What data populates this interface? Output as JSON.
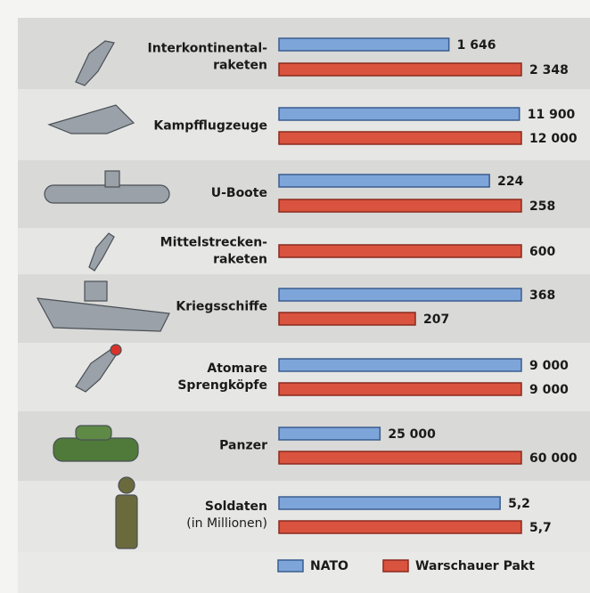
{
  "chart_data": {
    "type": "bar",
    "categories": [
      [
        "Interkontinental-",
        "raketen"
      ],
      [
        "Kampfflugzeuge"
      ],
      [
        "U-Boote"
      ],
      [
        "Mittelstrecken-",
        "raketen"
      ],
      [
        "Kriegsschiffe"
      ],
      [
        "Atomare",
        "Sprengköpfe"
      ],
      [
        "Panzer"
      ],
      [
        "Soldaten",
        "(in Millionen)"
      ]
    ],
    "series": [
      {
        "name": "NATO",
        "color": "#7ea5d9",
        "values": [
          1646,
          11900,
          224,
          null,
          368,
          9000,
          25000,
          5.2
        ],
        "value_labels": [
          "1 646",
          "11 900",
          "224",
          null,
          "368",
          "9 000",
          "25 000",
          "5,2"
        ]
      },
      {
        "name": "Warschauer Pakt",
        "color": "#d9533f",
        "values": [
          2348,
          12000,
          258,
          600,
          207,
          9000,
          60000,
          5.7
        ],
        "value_labels": [
          "2 348",
          "12 000",
          "258",
          "600",
          "207",
          "9 000",
          "60 000",
          "5,7"
        ]
      }
    ]
  }
}
